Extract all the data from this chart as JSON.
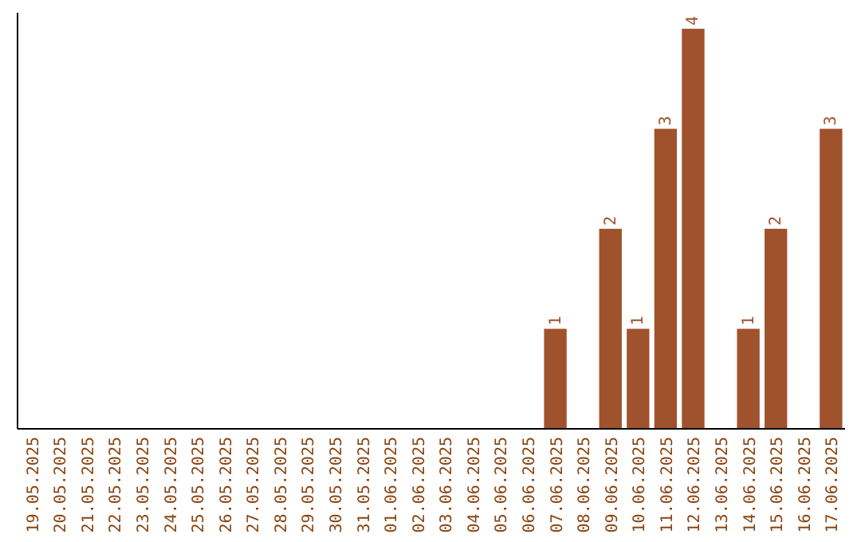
{
  "chart_data": {
    "type": "bar",
    "categories": [
      "19.05.2025",
      "20.05.2025",
      "21.05.2025",
      "22.05.2025",
      "23.05.2025",
      "24.05.2025",
      "25.05.2025",
      "26.05.2025",
      "27.05.2025",
      "28.05.2025",
      "29.05.2025",
      "30.05.2025",
      "31.05.2025",
      "01.06.2025",
      "02.06.2025",
      "03.06.2025",
      "04.06.2025",
      "05.06.2025",
      "06.06.2025",
      "07.06.2025",
      "08.06.2025",
      "09.06.2025",
      "10.06.2025",
      "11.06.2025",
      "12.06.2025",
      "13.06.2025",
      "14.06.2025",
      "15.06.2025",
      "16.06.2025",
      "17.06.2025"
    ],
    "values": [
      null,
      null,
      null,
      null,
      null,
      null,
      null,
      null,
      null,
      null,
      null,
      null,
      null,
      null,
      null,
      null,
      null,
      null,
      null,
      1,
      null,
      2,
      1,
      3,
      4,
      null,
      1,
      2,
      null,
      3
    ],
    "color": "#a0522d",
    "data_labels": true,
    "tick_labels": "x",
    "grid": false
  }
}
